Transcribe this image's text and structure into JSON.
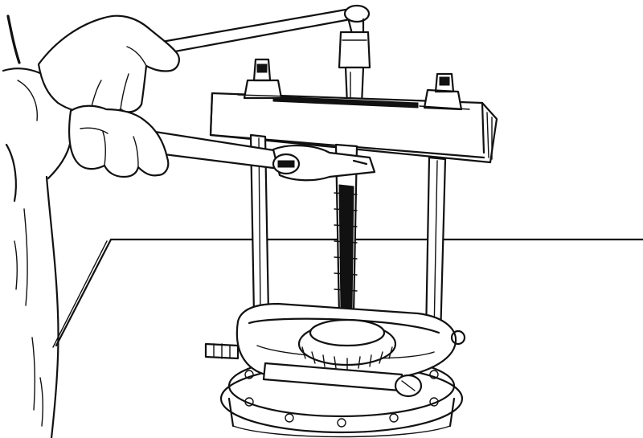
{
  "figure": {
    "colors": {
      "ink": "#111111",
      "paper": "#ffffff"
    },
    "parts": [
      "workbench",
      "mechanic-arm",
      "mechanic-hand-upper",
      "mechanic-hand-lower",
      "ratchet-handle",
      "open-end-wrench",
      "puller-crossbar",
      "crossbar-nut-left",
      "crossbar-nut-right",
      "puller-leg-left",
      "puller-leg-right",
      "forcing-screw",
      "ratchet-socket",
      "bearing",
      "bearing-separator-plate",
      "separator-bolt",
      "housing-flange"
    ]
  }
}
